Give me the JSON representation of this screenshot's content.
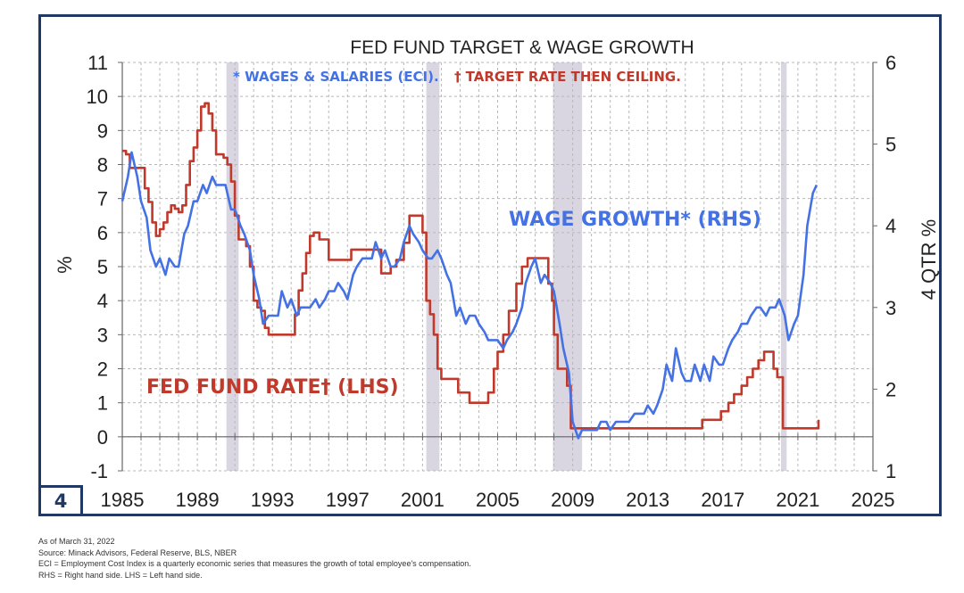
{
  "page_number": "4",
  "footnotes": {
    "as_of": "As of March 31, 2022",
    "source": "Source: Minack Advisors, Federal Reserve, BLS, NBER",
    "eci_note": "ECI = Employment Cost Index is a quarterly economic series that measures the growth of total employee's compensation.",
    "rhs_lhs": "RHS = Right hand side. LHS = Left hand side."
  },
  "chart_data": {
    "type": "line",
    "title": "FED FUND TARGET & WAGE GROWTH",
    "subtitle_blue": "* WAGES & SALARIES (ECI).",
    "subtitle_red": "† TARGET RATE THEN CEILING.",
    "ylabel_left": "%",
    "ylabel_right": "4 QTR %",
    "xlim": [
      1985,
      2025
    ],
    "ylim_left": [
      -1,
      11
    ],
    "ylim_right": [
      1,
      6
    ],
    "x_ticks": [
      "1985",
      "1989",
      "1993",
      "1997",
      "2001",
      "2005",
      "2009",
      "2013",
      "2017",
      "2021",
      "2025"
    ],
    "y_ticks_left": [
      "-1",
      "0",
      "1",
      "2",
      "3",
      "4",
      "5",
      "6",
      "7",
      "8",
      "9",
      "10",
      "11"
    ],
    "y_ticks_right": [
      "1",
      "2",
      "3",
      "4",
      "5",
      "6"
    ],
    "colors": {
      "fed_funds": "#c0392b",
      "wage": "#4472e4",
      "recession": "#d9d6e1",
      "grid": "#b8b8b8",
      "frame": "#1f3864"
    },
    "recessions": [
      [
        1990.55,
        1991.2
      ],
      [
        2001.2,
        2001.9
      ],
      [
        2007.95,
        2009.5
      ],
      [
        2020.1,
        2020.4
      ]
    ],
    "annotations": [
      {
        "text": "WAGE GROWTH* (RHS)",
        "series": "wage"
      },
      {
        "text": "FED FUND RATE† (LHS)",
        "series": "fed_funds"
      }
    ],
    "series": [
      {
        "name": "Fed Fund Rate (LHS)",
        "axis": "left",
        "x": [
          1985.0,
          1985.2,
          1985.4,
          1985.6,
          1985.8,
          1986.0,
          1986.2,
          1986.4,
          1986.6,
          1986.8,
          1987.0,
          1987.2,
          1987.4,
          1987.6,
          1987.8,
          1988.0,
          1988.2,
          1988.4,
          1988.6,
          1988.8,
          1989.0,
          1989.2,
          1989.4,
          1989.6,
          1989.8,
          1990.0,
          1990.2,
          1990.4,
          1990.6,
          1990.8,
          1991.0,
          1991.2,
          1991.4,
          1991.6,
          1991.8,
          1992.0,
          1992.2,
          1992.4,
          1992.6,
          1992.8,
          1993.0,
          1993.5,
          1994.0,
          1994.2,
          1994.4,
          1994.6,
          1994.8,
          1995.0,
          1995.2,
          1995.5,
          1996.0,
          1996.5,
          1997.0,
          1997.2,
          1997.5,
          1998.0,
          1998.5,
          1998.8,
          1999.0,
          1999.3,
          1999.6,
          2000.0,
          2000.3,
          2000.6,
          2000.9,
          2001.0,
          2001.2,
          2001.4,
          2001.6,
          2001.8,
          2002.0,
          2002.5,
          2002.9,
          2003.2,
          2003.5,
          2004.0,
          2004.5,
          2004.8,
          2005.0,
          2005.3,
          2005.6,
          2006.0,
          2006.3,
          2006.6,
          2007.0,
          2007.5,
          2007.7,
          2007.9,
          2008.0,
          2008.2,
          2008.4,
          2008.7,
          2008.9,
          2009.0,
          2010.0,
          2012.0,
          2014.0,
          2015.5,
          2015.9,
          2016.5,
          2016.9,
          2017.3,
          2017.6,
          2018.0,
          2018.3,
          2018.6,
          2018.9,
          2019.2,
          2019.5,
          2019.7,
          2019.9,
          2020.0,
          2020.2,
          2020.4,
          2021.0,
          2021.9,
          2022.1
        ],
        "values": [
          8.4,
          8.3,
          7.9,
          7.9,
          7.9,
          7.9,
          7.3,
          6.9,
          6.3,
          5.9,
          6.1,
          6.3,
          6.6,
          6.8,
          6.7,
          6.6,
          6.8,
          7.4,
          8.1,
          8.5,
          9.0,
          9.7,
          9.8,
          9.5,
          9.0,
          8.3,
          8.3,
          8.2,
          8.0,
          7.5,
          6.5,
          5.8,
          5.8,
          5.6,
          5.0,
          4.0,
          3.8,
          3.7,
          3.2,
          3.0,
          3.0,
          3.0,
          3.0,
          3.6,
          4.3,
          4.8,
          5.4,
          5.9,
          6.0,
          5.8,
          5.2,
          5.2,
          5.2,
          5.5,
          5.5,
          5.5,
          5.5,
          4.8,
          4.8,
          5.0,
          5.2,
          5.7,
          6.5,
          6.5,
          6.5,
          6.0,
          4.0,
          3.6,
          3.0,
          2.0,
          1.7,
          1.7,
          1.3,
          1.3,
          1.0,
          1.0,
          1.3,
          2.0,
          2.5,
          3.0,
          3.7,
          4.5,
          5.0,
          5.25,
          5.25,
          5.25,
          4.5,
          4.0,
          3.0,
          2.0,
          2.0,
          1.5,
          0.25,
          0.25,
          0.25,
          0.25,
          0.25,
          0.25,
          0.5,
          0.5,
          0.75,
          1.0,
          1.25,
          1.5,
          1.75,
          2.0,
          2.25,
          2.5,
          2.5,
          2.0,
          1.75,
          1.75,
          0.25,
          0.25,
          0.25,
          0.25,
          0.5
        ]
      },
      {
        "name": "Wage Growth (RHS)",
        "axis": "right",
        "x": [
          1985.0,
          1985.3,
          1985.5,
          1985.8,
          1986.0,
          1986.3,
          1986.5,
          1986.8,
          1987.0,
          1987.3,
          1987.5,
          1987.8,
          1988.0,
          1988.3,
          1988.5,
          1988.8,
          1989.0,
          1989.3,
          1989.5,
          1989.8,
          1990.0,
          1990.3,
          1990.5,
          1990.8,
          1991.0,
          1991.3,
          1991.5,
          1991.8,
          1992.0,
          1992.3,
          1992.5,
          1992.8,
          1993.0,
          1993.3,
          1993.5,
          1993.8,
          1994.0,
          1994.3,
          1994.5,
          1994.8,
          1995.0,
          1995.3,
          1995.5,
          1995.8,
          1996.0,
          1996.3,
          1996.5,
          1996.8,
          1997.0,
          1997.3,
          1997.5,
          1997.8,
          1998.0,
          1998.3,
          1998.5,
          1998.8,
          1999.0,
          1999.3,
          1999.5,
          1999.8,
          2000.0,
          2000.3,
          2000.5,
          2000.8,
          2001.0,
          2001.3,
          2001.5,
          2001.8,
          2002.0,
          2002.3,
          2002.5,
          2002.8,
          2003.0,
          2003.3,
          2003.5,
          2003.8,
          2004.0,
          2004.3,
          2004.5,
          2004.8,
          2005.0,
          2005.3,
          2005.5,
          2005.8,
          2006.0,
          2006.3,
          2006.5,
          2006.8,
          2007.0,
          2007.3,
          2007.5,
          2007.8,
          2008.0,
          2008.3,
          2008.5,
          2008.8,
          2009.0,
          2009.3,
          2009.5,
          2009.8,
          2010.0,
          2010.3,
          2010.5,
          2010.8,
          2011.0,
          2011.3,
          2011.5,
          2011.8,
          2012.0,
          2012.3,
          2012.5,
          2012.8,
          2013.0,
          2013.3,
          2013.5,
          2013.8,
          2014.0,
          2014.3,
          2014.5,
          2014.8,
          2015.0,
          2015.3,
          2015.5,
          2015.8,
          2016.0,
          2016.3,
          2016.5,
          2016.8,
          2017.0,
          2017.3,
          2017.5,
          2017.8,
          2018.0,
          2018.3,
          2018.5,
          2018.8,
          2019.0,
          2019.3,
          2019.5,
          2019.8,
          2020.0,
          2020.3,
          2020.5,
          2020.8,
          2021.0,
          2021.3,
          2021.5,
          2021.8,
          2022.0
        ],
        "values": [
          4.3,
          4.6,
          4.9,
          4.6,
          4.3,
          4.1,
          3.7,
          3.5,
          3.6,
          3.4,
          3.6,
          3.5,
          3.5,
          3.9,
          4.0,
          4.3,
          4.3,
          4.5,
          4.4,
          4.6,
          4.5,
          4.5,
          4.5,
          4.2,
          4.2,
          4.0,
          3.9,
          3.7,
          3.4,
          3.1,
          2.8,
          2.9,
          2.9,
          2.9,
          3.2,
          3.0,
          3.1,
          2.9,
          3.0,
          3.0,
          3.0,
          3.1,
          3.0,
          3.1,
          3.2,
          3.2,
          3.3,
          3.2,
          3.1,
          3.4,
          3.5,
          3.6,
          3.6,
          3.6,
          3.8,
          3.6,
          3.7,
          3.5,
          3.5,
          3.6,
          3.8,
          4.0,
          3.9,
          3.8,
          3.7,
          3.6,
          3.6,
          3.7,
          3.6,
          3.4,
          3.3,
          2.9,
          3.0,
          2.8,
          2.9,
          2.9,
          2.8,
          2.7,
          2.6,
          2.6,
          2.6,
          2.5,
          2.6,
          2.7,
          2.8,
          3.0,
          3.3,
          3.5,
          3.6,
          3.3,
          3.4,
          3.3,
          3.2,
          2.8,
          2.5,
          2.2,
          1.6,
          1.4,
          1.5,
          1.5,
          1.5,
          1.5,
          1.6,
          1.6,
          1.5,
          1.6,
          1.6,
          1.6,
          1.6,
          1.7,
          1.7,
          1.7,
          1.8,
          1.7,
          1.8,
          2.0,
          2.3,
          2.1,
          2.5,
          2.2,
          2.1,
          2.1,
          2.3,
          2.1,
          2.3,
          2.1,
          2.4,
          2.3,
          2.3,
          2.5,
          2.6,
          2.7,
          2.8,
          2.8,
          2.9,
          3.0,
          3.0,
          2.9,
          3.0,
          3.0,
          3.1,
          2.9,
          2.6,
          2.8,
          2.9,
          3.4,
          4.0,
          4.4,
          4.5
        ]
      }
    ]
  }
}
